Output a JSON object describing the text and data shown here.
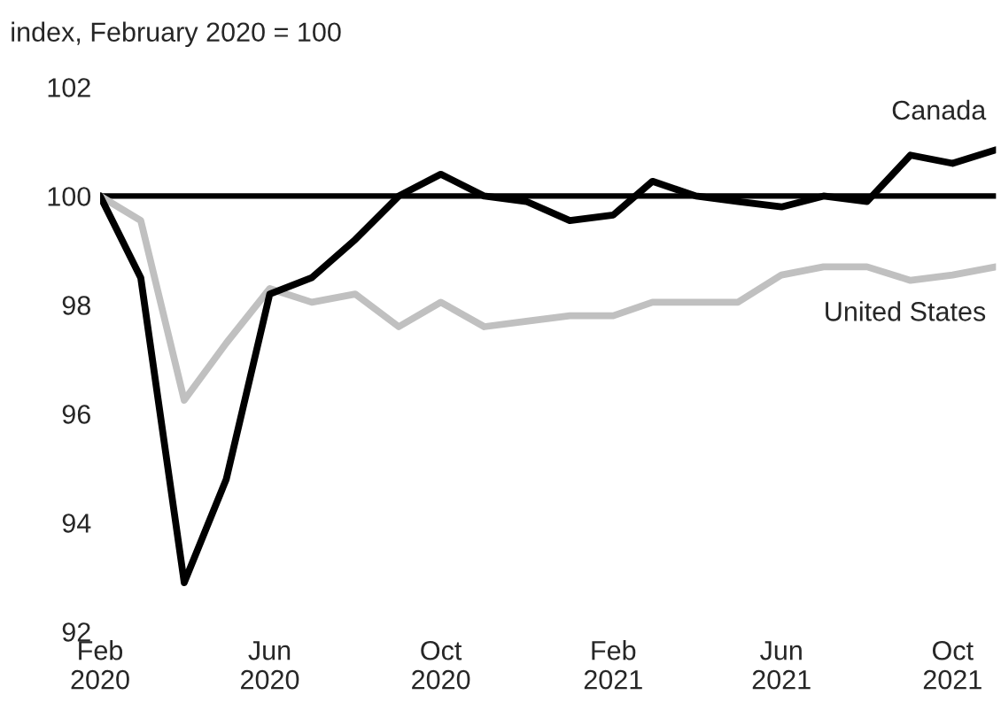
{
  "chart_data": {
    "type": "line",
    "ylabel": "index, February 2020 = 100",
    "x": [
      "2020-02",
      "2020-03",
      "2020-04",
      "2020-05",
      "2020-06",
      "2020-07",
      "2020-08",
      "2020-09",
      "2020-10",
      "2020-11",
      "2020-12",
      "2021-01",
      "2021-02",
      "2021-03",
      "2021-04",
      "2021-05",
      "2021-06",
      "2021-07",
      "2021-08",
      "2021-09",
      "2021-10",
      "2021-11"
    ],
    "series": [
      {
        "name": "Canada",
        "color": "#000000",
        "values": [
          100,
          98.5,
          92.9,
          94.8,
          98.2,
          98.5,
          99.2,
          100.0,
          100.4,
          100.0,
          99.9,
          99.55,
          99.65,
          100.27,
          100.0,
          99.9,
          99.8,
          100.0,
          99.9,
          100.75,
          100.6,
          100.85
        ]
      },
      {
        "name": "United States",
        "color": "#c0c0c0",
        "values": [
          100,
          99.55,
          96.25,
          97.3,
          98.3,
          98.05,
          98.2,
          97.6,
          98.05,
          97.6,
          97.7,
          97.8,
          97.8,
          98.05,
          98.05,
          98.05,
          98.55,
          98.7,
          98.7,
          98.45,
          98.55,
          98.7
        ]
      }
    ],
    "xlim": [
      "2020-02",
      "2021-11"
    ],
    "xticks": [
      {
        "value": "2020-02",
        "label": "Feb\n2020"
      },
      {
        "value": "2020-06",
        "label": "Jun\n2020"
      },
      {
        "value": "2020-10",
        "label": "Oct\n2020"
      },
      {
        "value": "2021-02",
        "label": "Feb\n2021"
      },
      {
        "value": "2021-06",
        "label": "Jun\n2021"
      },
      {
        "value": "2021-10",
        "label": "Oct\n2021"
      }
    ],
    "ylim": [
      92,
      102
    ],
    "yticks": [
      92,
      94,
      96,
      98,
      100,
      102
    ],
    "ref_lines": [
      {
        "axis": "y",
        "value": 100,
        "color": "#000000"
      }
    ],
    "grid": false,
    "legend": false,
    "marker": "none",
    "line_style": "solid"
  }
}
